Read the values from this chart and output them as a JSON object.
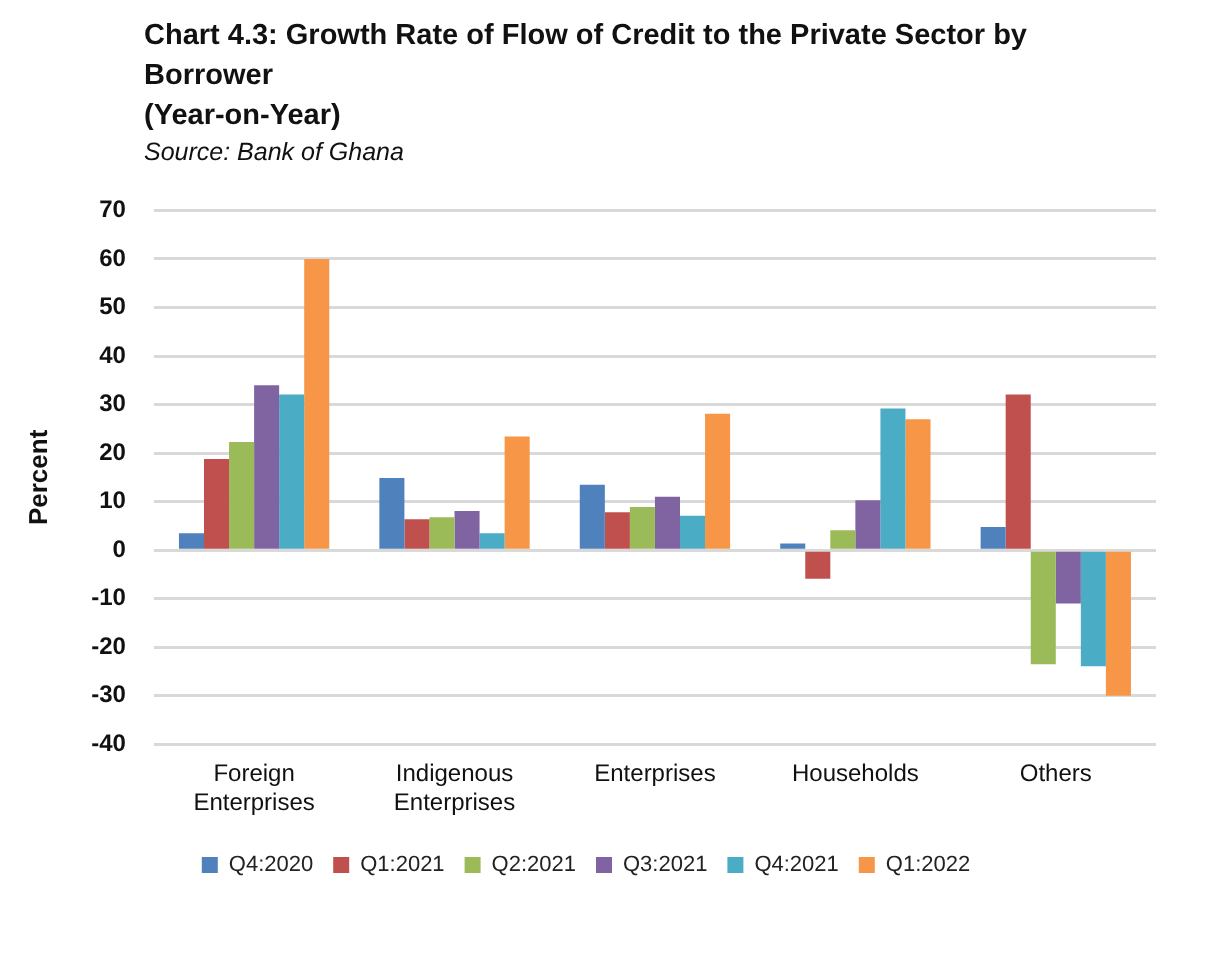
{
  "chart_data": {
    "type": "bar",
    "title": "Chart 4.3: Growth Rate of Flow of Credit to the Private Sector by Borrower",
    "subtitle": "(Year-on-Year)",
    "annotations": [
      "Source: Bank of Ghana"
    ],
    "ylabel": "Percent",
    "categories": [
      "Foreign Enterprises",
      "Indigenous Enterprises",
      "Enterprises",
      "Households",
      "Others"
    ],
    "series": [
      {
        "name": "Q4:2020",
        "color": "#4f81bd",
        "values": [
          3.5,
          14.9,
          13.5,
          1.4,
          4.8
        ]
      },
      {
        "name": "Q1:2021",
        "color": "#c0504d",
        "values": [
          18.8,
          6.4,
          7.8,
          -5.9,
          32.1
        ]
      },
      {
        "name": "Q2:2021",
        "color": "#9bbb59",
        "values": [
          22.3,
          6.8,
          8.9,
          4.1,
          -23.5
        ]
      },
      {
        "name": "Q3:2021",
        "color": "#8064a2",
        "values": [
          34,
          8.1,
          11,
          10.3,
          -11
        ]
      },
      {
        "name": "Q4:2021",
        "color": "#4bacc6",
        "values": [
          32.1,
          3.5,
          7.1,
          29.2,
          -23.9
        ]
      },
      {
        "name": "Q1:2022",
        "color": "#f79646",
        "values": [
          60,
          23.4,
          28.1,
          27,
          -30
        ]
      }
    ],
    "ylim": [
      -40,
      70
    ],
    "yticks": [
      -40,
      -30,
      -20,
      -10,
      0,
      10,
      20,
      30,
      40,
      50,
      60,
      70
    ],
    "grid": "y",
    "legend": "bottom"
  }
}
